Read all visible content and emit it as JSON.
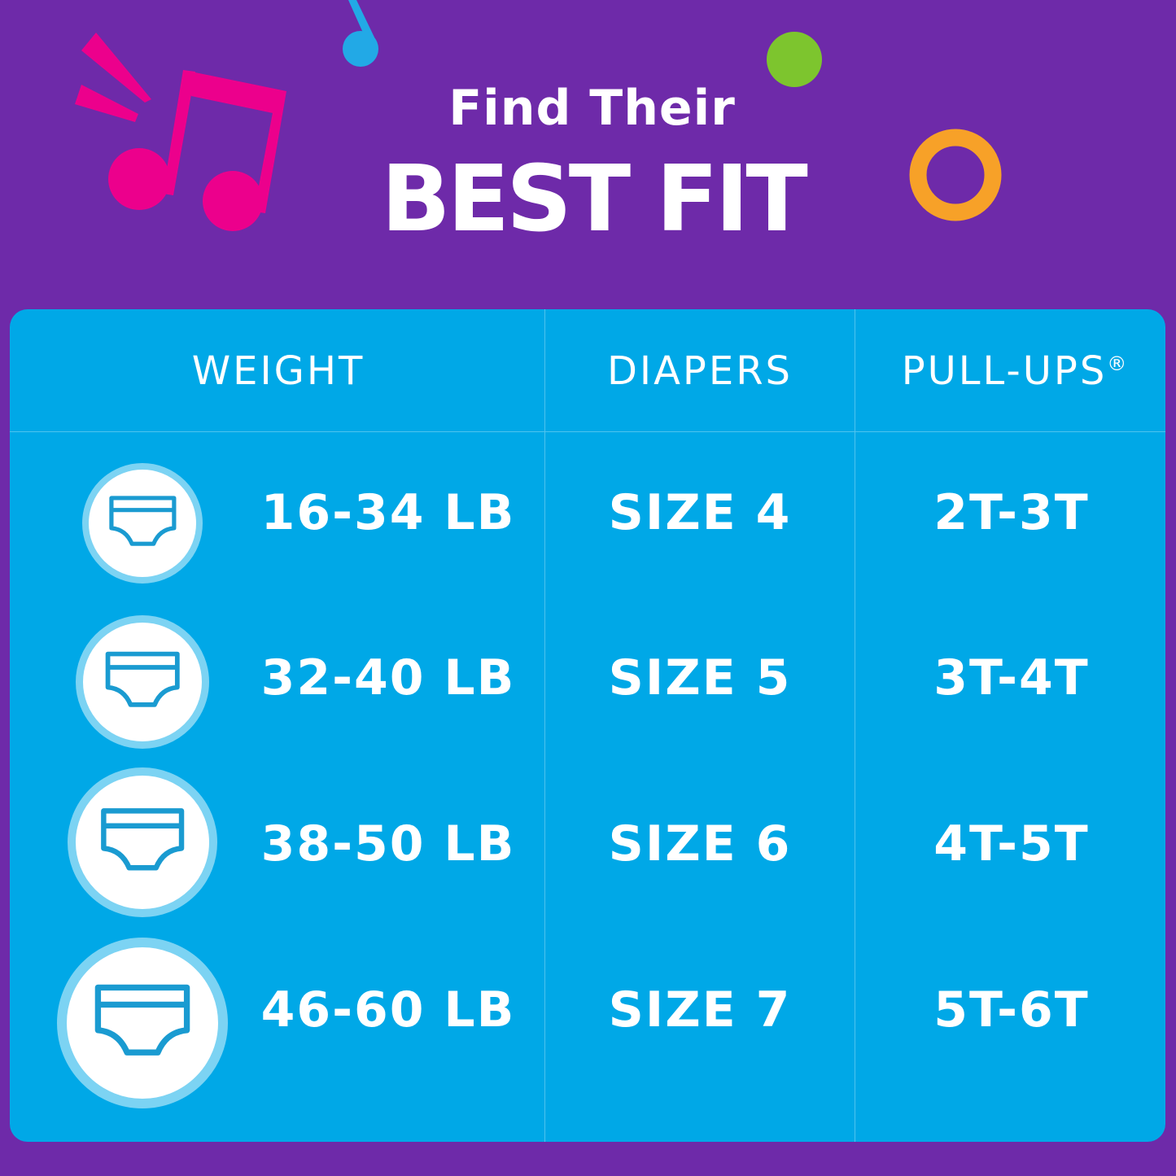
{
  "header": {
    "line1": "Find Their",
    "line2": "BEST FIT"
  },
  "colors": {
    "background": "#6E2AA9",
    "table": "#00A8E7",
    "note_pink": "#EC008C",
    "note_blue": "#22A9E6",
    "dot_green": "#7DC52E",
    "ring_orange": "#F7A128",
    "icon_stroke": "#1A9BD1"
  },
  "table": {
    "columns": [
      "WEIGHT",
      "DIAPERS",
      "PULL-UPS"
    ],
    "registered_mark": "®",
    "rows": [
      {
        "icon": "diaper-icon",
        "weight": "16-34 LB",
        "diapers": "SIZE 4",
        "pullups": "2T-3T"
      },
      {
        "icon": "diaper-icon",
        "weight": "32-40 LB",
        "diapers": "SIZE 5",
        "pullups": "3T-4T"
      },
      {
        "icon": "diaper-icon",
        "weight": "38-50 LB",
        "diapers": "SIZE 6",
        "pullups": "4T-5T"
      },
      {
        "icon": "diaper-icon",
        "weight": "46-60 LB",
        "diapers": "SIZE 7",
        "pullups": "5T-6T"
      }
    ]
  }
}
